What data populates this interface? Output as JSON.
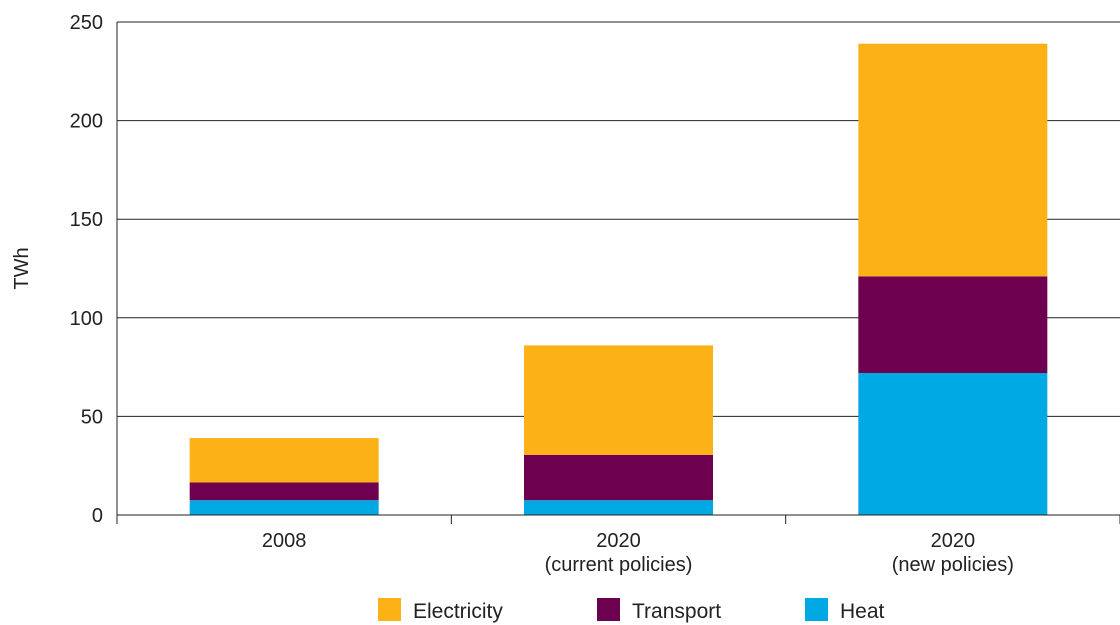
{
  "chart_data": {
    "type": "bar",
    "stacked": true,
    "categories": [
      [
        "2008"
      ],
      [
        "2020",
        "(current policies)"
      ],
      [
        "2020",
        "(new policies)"
      ]
    ],
    "series": [
      {
        "name": "Heat",
        "values": [
          7.5,
          7.5,
          72
        ],
        "color": "#00a9e4"
      },
      {
        "name": "Transport",
        "values": [
          9,
          23,
          49
        ],
        "color": "#6e0050"
      },
      {
        "name": "Electricity",
        "values": [
          22.5,
          55.5,
          118
        ],
        "color": "#fcb117"
      }
    ],
    "legend_order": [
      "Electricity",
      "Transport",
      "Heat"
    ],
    "ylabel": "TWh",
    "xlabel": "",
    "ylim": [
      0,
      250
    ],
    "yticks": [
      0,
      50,
      100,
      150,
      200,
      250
    ],
    "grid": "horizontal",
    "legend_position": "bottom"
  }
}
